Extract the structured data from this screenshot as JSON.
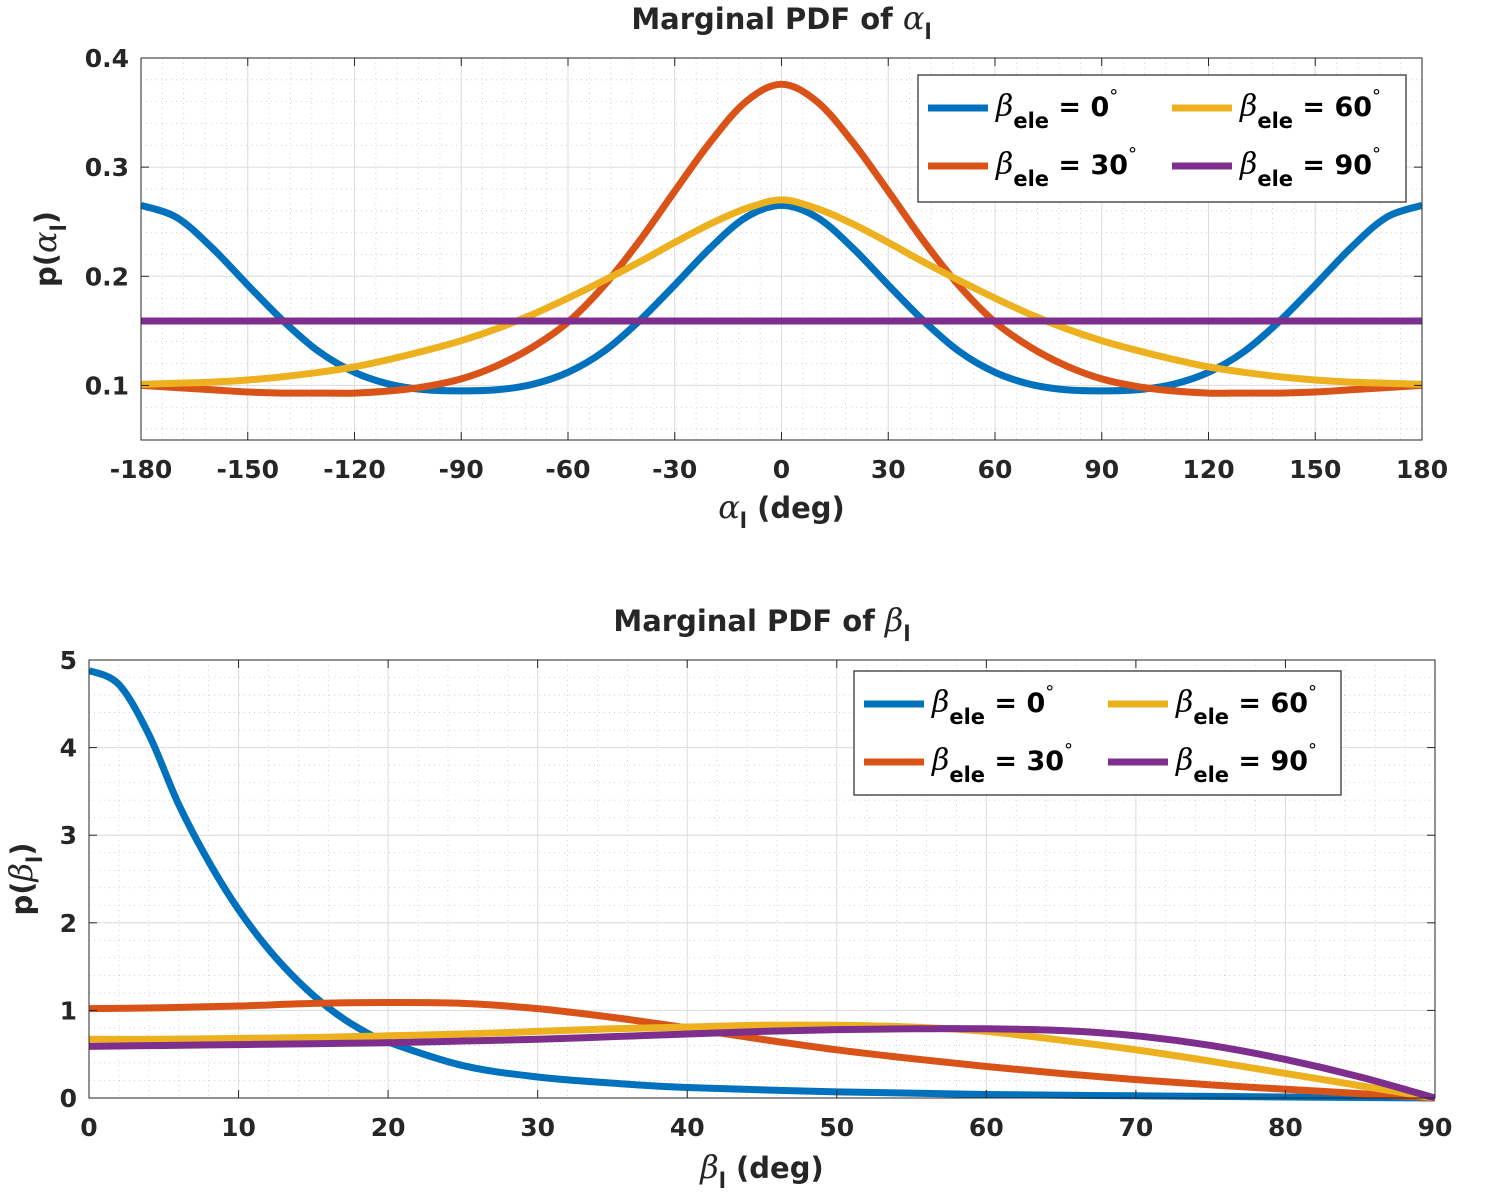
{
  "chart_data": [
    {
      "type": "line",
      "title": "Marginal PDF of α_l",
      "title_text": "Marginal PDF of ",
      "title_var": "α",
      "title_sub": "l",
      "xlabel_var": "α",
      "xlabel_sub": "l",
      "xlabel_text": " (deg)",
      "ylabel_prefix": "p(",
      "ylabel_var": "α",
      "ylabel_sub": "l",
      "ylabel_suffix": ")",
      "xlim": [
        -180,
        180
      ],
      "ylim": [
        0.05,
        0.4
      ],
      "xticks": [
        -180,
        -150,
        -120,
        -90,
        -60,
        -30,
        0,
        30,
        60,
        90,
        120,
        150,
        180
      ],
      "yticks": [
        0.1,
        0.2,
        0.3,
        0.4
      ],
      "ytick_labels": [
        "0.1",
        "0.2",
        "0.3",
        "0.4"
      ],
      "grid": true,
      "legend_position": "top-right",
      "legend_columns": 2,
      "series": [
        {
          "name": "β_ele = 0°",
          "label_var": "β",
          "label_sub": "ele",
          "label_text": " = 0",
          "label_deg": "°",
          "color": "#0072BD",
          "x": [
            -180,
            -170,
            -160,
            -150,
            -140,
            -130,
            -120,
            -110,
            -100,
            -90,
            -80,
            -70,
            -60,
            -50,
            -40,
            -30,
            -20,
            -10,
            0,
            10,
            20,
            30,
            40,
            50,
            60,
            70,
            80,
            90,
            100,
            110,
            120,
            130,
            140,
            150,
            160,
            170,
            180
          ],
          "y": [
            0.265,
            0.254,
            0.226,
            0.192,
            0.159,
            0.131,
            0.112,
            0.101,
            0.096,
            0.095,
            0.096,
            0.101,
            0.112,
            0.131,
            0.159,
            0.192,
            0.226,
            0.254,
            0.265,
            0.254,
            0.226,
            0.192,
            0.159,
            0.131,
            0.112,
            0.101,
            0.096,
            0.095,
            0.096,
            0.101,
            0.112,
            0.131,
            0.159,
            0.192,
            0.226,
            0.254,
            0.265
          ]
        },
        {
          "name": "β_ele = 30°",
          "label_var": "β",
          "label_sub": "ele",
          "label_text": " = 30",
          "label_deg": "°",
          "color": "#D95319",
          "x": [
            -180,
            -170,
            -160,
            -150,
            -140,
            -130,
            -120,
            -110,
            -100,
            -90,
            -80,
            -70,
            -60,
            -50,
            -40,
            -30,
            -20,
            -10,
            0,
            10,
            20,
            30,
            40,
            50,
            60,
            70,
            80,
            90,
            100,
            110,
            120,
            130,
            140,
            150,
            160,
            170,
            180
          ],
          "y": [
            0.1,
            0.098,
            0.096,
            0.094,
            0.093,
            0.093,
            0.093,
            0.095,
            0.099,
            0.106,
            0.118,
            0.135,
            0.158,
            0.191,
            0.232,
            0.278,
            0.323,
            0.36,
            0.376,
            0.36,
            0.323,
            0.278,
            0.232,
            0.191,
            0.158,
            0.135,
            0.118,
            0.106,
            0.099,
            0.095,
            0.093,
            0.093,
            0.093,
            0.094,
            0.096,
            0.098,
            0.1
          ]
        },
        {
          "name": "β_ele = 60°",
          "label_var": "β",
          "label_sub": "ele",
          "label_text": " = 60",
          "label_deg": "°",
          "color": "#EDB120",
          "x": [
            -180,
            -170,
            -160,
            -150,
            -140,
            -130,
            -120,
            -110,
            -100,
            -90,
            -80,
            -70,
            -60,
            -50,
            -40,
            -30,
            -20,
            -10,
            0,
            10,
            20,
            30,
            40,
            50,
            60,
            70,
            80,
            90,
            100,
            110,
            120,
            130,
            140,
            150,
            160,
            170,
            180
          ],
          "y": [
            0.101,
            0.102,
            0.103,
            0.105,
            0.108,
            0.112,
            0.117,
            0.124,
            0.132,
            0.141,
            0.152,
            0.165,
            0.18,
            0.196,
            0.213,
            0.231,
            0.248,
            0.262,
            0.27,
            0.262,
            0.248,
            0.231,
            0.213,
            0.196,
            0.18,
            0.165,
            0.152,
            0.141,
            0.132,
            0.124,
            0.117,
            0.112,
            0.108,
            0.105,
            0.103,
            0.102,
            0.101
          ]
        },
        {
          "name": "β_ele = 90°",
          "label_var": "β",
          "label_sub": "ele",
          "label_text": " = 90",
          "label_deg": "°",
          "color": "#7E2F8E",
          "x": [
            -180,
            180
          ],
          "y": [
            0.159,
            0.159
          ]
        }
      ]
    },
    {
      "type": "line",
      "title": "Marginal PDF of β_l",
      "title_text": "Marginal PDF of ",
      "title_var": "β",
      "title_sub": "l",
      "xlabel_var": "β",
      "xlabel_sub": "l",
      "xlabel_text": " (deg)",
      "ylabel_prefix": "p(",
      "ylabel_var": "β",
      "ylabel_sub": "l",
      "ylabel_suffix": ")",
      "xlim": [
        0,
        90
      ],
      "ylim": [
        0,
        5
      ],
      "xticks": [
        0,
        10,
        20,
        30,
        40,
        50,
        60,
        70,
        80,
        90
      ],
      "yticks": [
        0,
        1,
        2,
        3,
        4,
        5
      ],
      "ytick_labels": [
        "0",
        "1",
        "2",
        "3",
        "4",
        "5"
      ],
      "grid": true,
      "legend_position": "top-right",
      "legend_columns": 2,
      "series": [
        {
          "name": "β_ele = 0°",
          "label_var": "β",
          "label_sub": "ele",
          "label_text": " = 0",
          "label_deg": "°",
          "color": "#0072BD",
          "x": [
            0,
            2,
            4,
            6,
            8,
            10,
            12,
            14,
            16,
            18,
            20,
            25,
            30,
            35,
            40,
            50,
            60,
            70,
            80,
            90
          ],
          "y": [
            4.88,
            4.72,
            4.15,
            3.35,
            2.7,
            2.15,
            1.7,
            1.33,
            1.03,
            0.8,
            0.64,
            0.37,
            0.24,
            0.17,
            0.12,
            0.07,
            0.04,
            0.025,
            0.012,
            0.0
          ]
        },
        {
          "name": "β_ele = 30°",
          "label_var": "β",
          "label_sub": "ele",
          "label_text": " = 30",
          "label_deg": "°",
          "color": "#D95319",
          "x": [
            0,
            5,
            10,
            15,
            20,
            25,
            30,
            35,
            40,
            45,
            50,
            55,
            60,
            65,
            70,
            75,
            80,
            85,
            90
          ],
          "y": [
            1.02,
            1.03,
            1.05,
            1.08,
            1.09,
            1.08,
            1.02,
            0.92,
            0.8,
            0.67,
            0.55,
            0.45,
            0.36,
            0.28,
            0.21,
            0.15,
            0.1,
            0.05,
            0.0
          ]
        },
        {
          "name": "β_ele = 60°",
          "label_var": "β",
          "label_sub": "ele",
          "label_text": " = 60",
          "label_deg": "°",
          "color": "#EDB120",
          "x": [
            0,
            5,
            10,
            15,
            20,
            25,
            30,
            35,
            40,
            45,
            50,
            55,
            60,
            65,
            70,
            75,
            80,
            85,
            90
          ],
          "y": [
            0.67,
            0.67,
            0.68,
            0.69,
            0.71,
            0.73,
            0.76,
            0.79,
            0.81,
            0.83,
            0.83,
            0.81,
            0.76,
            0.66,
            0.55,
            0.42,
            0.28,
            0.14,
            0.0
          ]
        },
        {
          "name": "β_ele = 90°",
          "label_var": "β",
          "label_sub": "ele",
          "label_text": " = 90",
          "label_deg": "°",
          "color": "#7E2F8E",
          "x": [
            0,
            5,
            10,
            15,
            20,
            25,
            30,
            35,
            40,
            45,
            50,
            55,
            60,
            65,
            70,
            75,
            80,
            85,
            90
          ],
          "y": [
            0.59,
            0.6,
            0.61,
            0.62,
            0.63,
            0.65,
            0.67,
            0.7,
            0.73,
            0.76,
            0.78,
            0.79,
            0.79,
            0.77,
            0.71,
            0.6,
            0.44,
            0.24,
            0.0
          ]
        }
      ]
    }
  ]
}
